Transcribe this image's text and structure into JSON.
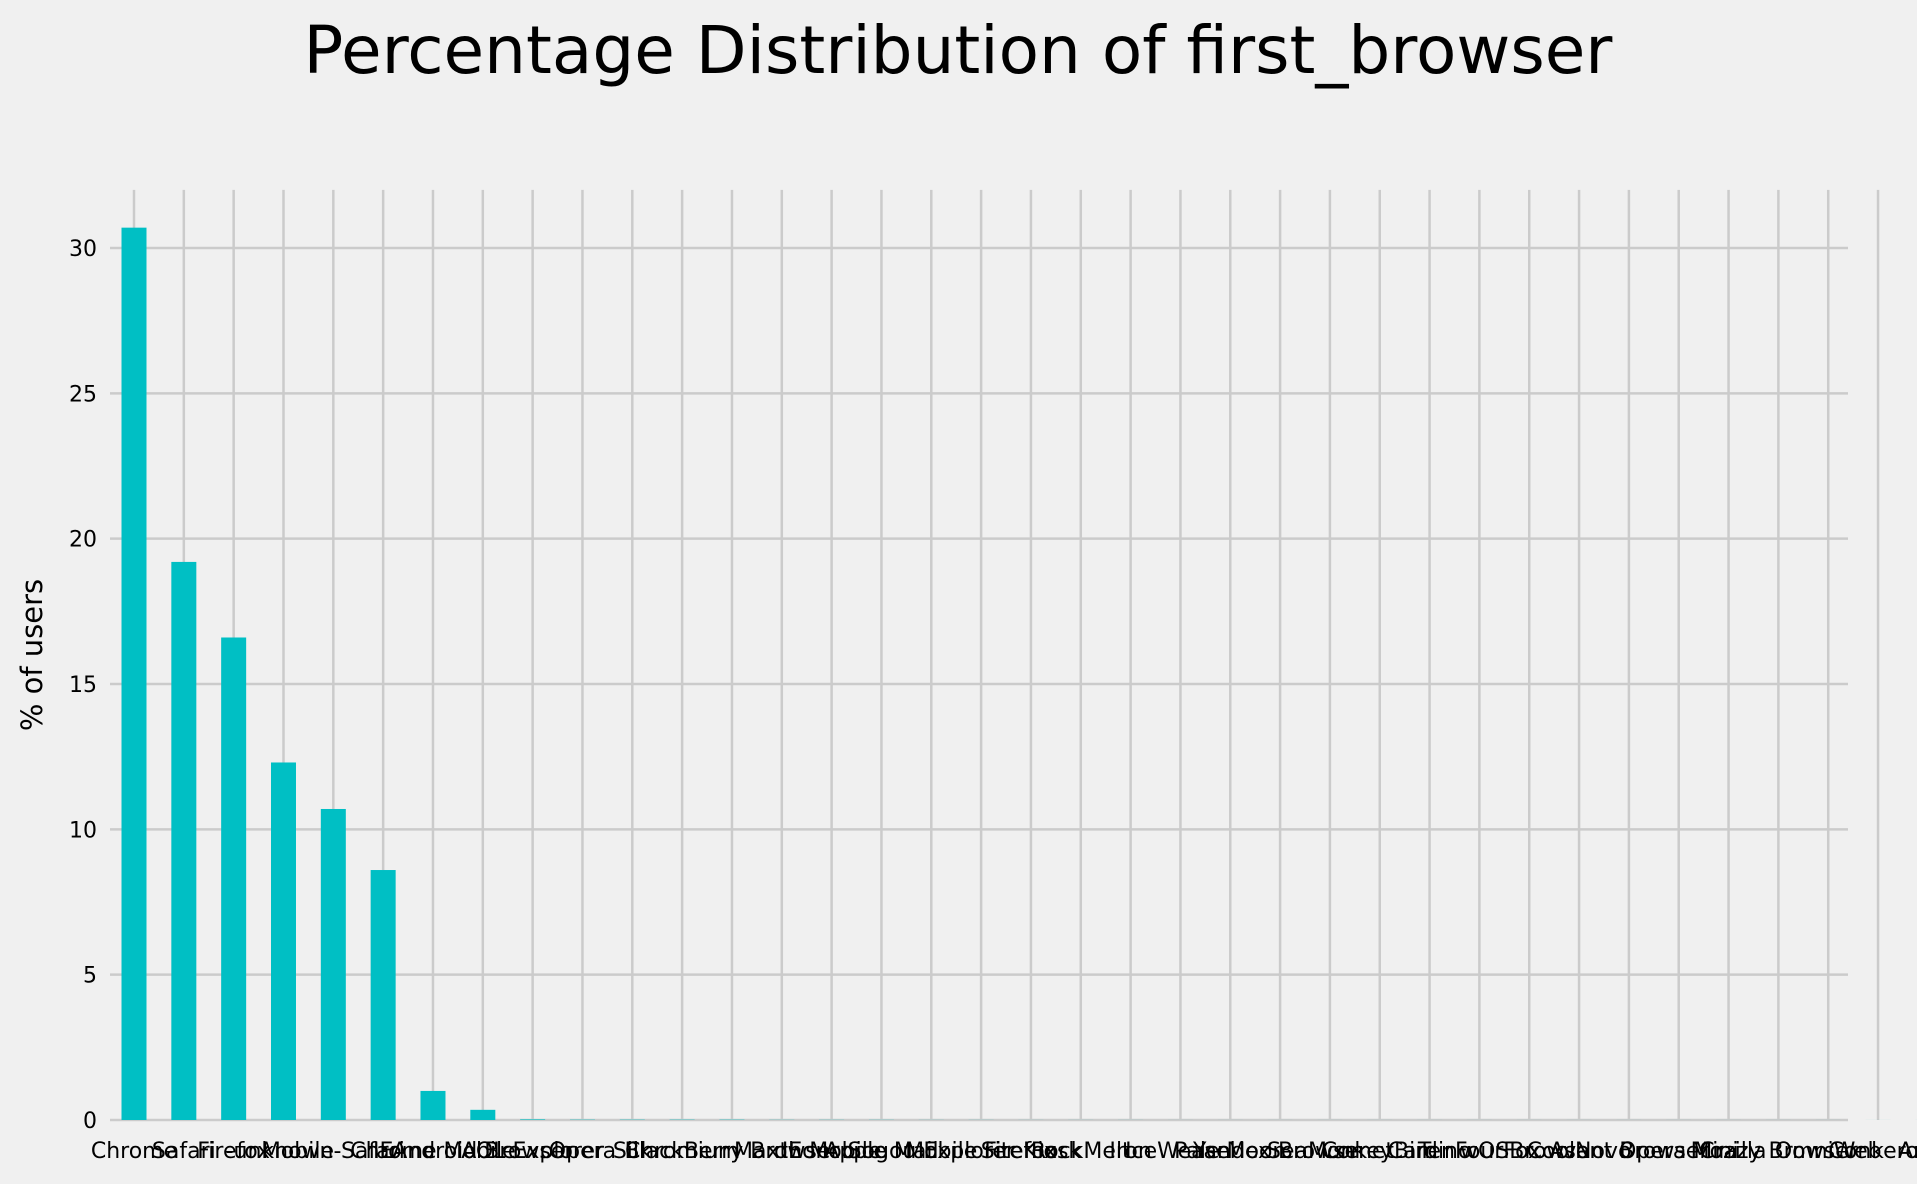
{
  "chart_data": {
    "type": "bar",
    "title": "Percentage Distribution of first_browser",
    "xlabel": "",
    "ylabel": "% of users",
    "ylim": [
      0,
      32
    ],
    "yticks": [
      0,
      5,
      10,
      15,
      20,
      25,
      30
    ],
    "grid": true,
    "legend": "none",
    "bar_color": "#00bfc4",
    "background": "#f0f0f0",
    "categories": [
      "Chrome",
      "Safari",
      "Firefox",
      "-unknown-",
      "Mobile Safari",
      "IE",
      "Chrome Mobile",
      "Android Browser",
      "AOL Explorer",
      "Opera",
      "Silk",
      "Chromium",
      "BlackBerry Browser",
      "Maxthon",
      "IE Mobile",
      "Apple Mail",
      "Sogou Explorer",
      "Mobile Firefox",
      "SiteKiosk",
      "RockMelt",
      "Iron",
      "IceWeasel",
      "Pale Moon",
      "Yandex.Browser",
      "SeaMonkey",
      "CometBird",
      "Camino",
      "TenFourFox",
      "wOSBrowser",
      "CoolNovo",
      "Avant Browser",
      "Opera Mini",
      "Mozilla",
      "Crazy Browser",
      "OmniWeb",
      "Conkeror",
      "Arora"
    ],
    "values": [
      30.7,
      19.2,
      16.6,
      12.3,
      10.7,
      8.6,
      1.0,
      0.35,
      0.02,
      0.01,
      0.01,
      0.01,
      0.01,
      0.005,
      0.005,
      0.005,
      0.003,
      0.003,
      0.002,
      0.002,
      0.002,
      0.001,
      0.001,
      0.001,
      0.001,
      0.001,
      0.001,
      0.001,
      0.001,
      0.001,
      0.001,
      0.001,
      0.001,
      0.001,
      0.001,
      0.001,
      0.001
    ]
  }
}
